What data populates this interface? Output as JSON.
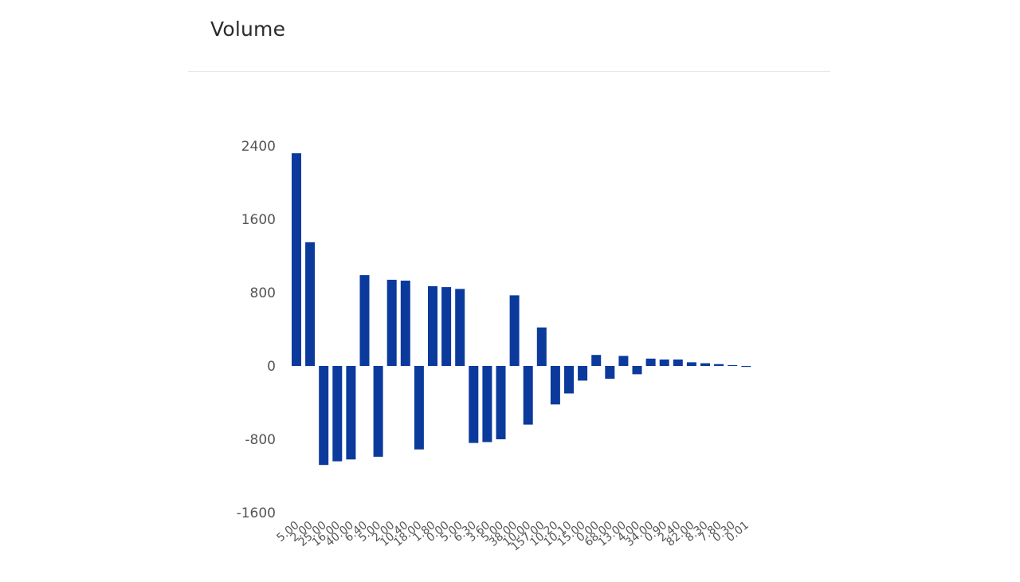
{
  "panel": {
    "title": "Volume"
  },
  "chart_data": {
    "type": "bar",
    "title": "Volume",
    "xlabel": "",
    "ylabel": "",
    "ylim": [
      -1600,
      2400
    ],
    "yticks": [
      2400,
      1600,
      800,
      0,
      -800,
      -1600
    ],
    "grid": false,
    "color": "#0b3a9c",
    "categories": [
      "5.00",
      "2.00",
      "25.00",
      "16.00",
      "40.00",
      "6.40",
      "5.00",
      "2.00",
      "10.40",
      "18.00",
      "1.80",
      "0.00",
      "5.00",
      "6.30",
      "3.60",
      "5.00",
      "38.00",
      "10.00",
      "157.00",
      "10.20",
      "10.10",
      "15.00",
      "0.00",
      "68.00",
      "13.00",
      "4.00",
      "34.00",
      "0.90",
      "2.40",
      "82.00",
      "8.30",
      "7.80",
      "0.30",
      "0.01"
    ],
    "values": [
      2320,
      1350,
      -1080,
      -1040,
      -1020,
      990,
      -990,
      940,
      930,
      -910,
      870,
      860,
      840,
      -840,
      -830,
      -800,
      770,
      -640,
      420,
      -420,
      -300,
      -160,
      120,
      -140,
      110,
      -90,
      80,
      70,
      70,
      40,
      30,
      20,
      10,
      -10
    ],
    "xtick_labels_shown": [
      "5.00",
      "2.00",
      "25.00",
      "16.00",
      "40.00",
      "6.40",
      "5.00",
      "2.00",
      "10.40",
      "18.00",
      "1.80",
      "0.00",
      "5.00",
      "6.30",
      "3.60",
      "5.00",
      "38.00",
      "10.00",
      "157.00",
      "10.20",
      "10.10",
      "15.00",
      "0.00",
      "68.00",
      "13.00",
      "4.00",
      "34.00",
      "0.90",
      "2.40",
      "82.00",
      "8.30",
      "7.80",
      "0.30",
      "0.01"
    ]
  }
}
